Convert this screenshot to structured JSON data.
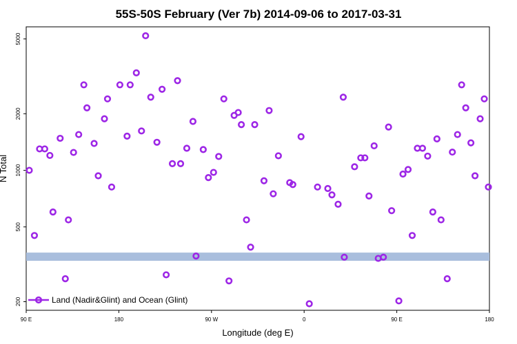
{
  "chart_data": {
    "type": "scatter",
    "title": "55S-50S February (Ver 7b)   2014-09-06 to 2017-03-31",
    "xlabel": "Longitude (deg E)",
    "ylabel": "N Total",
    "x_ticks": [
      {
        "value": 90,
        "label": "90 E"
      },
      {
        "value": 180,
        "label": "180"
      },
      {
        "value": 270,
        "label": "90 W"
      },
      {
        "value": 360,
        "label": "0"
      },
      {
        "value": 450,
        "label": "90 E"
      },
      {
        "value": 540,
        "label": "180"
      }
    ],
    "y_ticks": [
      {
        "value": 200,
        "label": "200"
      },
      {
        "value": 500,
        "label": "500"
      },
      {
        "value": 1000,
        "label": "1000"
      },
      {
        "value": 2000,
        "label": "2000"
      },
      {
        "value": 5000,
        "label": "5000"
      }
    ],
    "xlim": [
      90,
      540
    ],
    "ylim": [
      180,
      5800
    ],
    "y_scale": "log",
    "grid": false,
    "band": {
      "y_low": 330,
      "y_high": 365,
      "color": "#a9bedd"
    },
    "series": [
      {
        "name": "Land (Nadir&Glint) and Ocean (Glint)",
        "color": "#9d26e6",
        "points": [
          [
            93,
            1000
          ],
          [
            98,
            450
          ],
          [
            103,
            1300
          ],
          [
            108,
            1300
          ],
          [
            113,
            1200
          ],
          [
            116,
            600
          ],
          [
            123,
            1480
          ],
          [
            128,
            265
          ],
          [
            131,
            545
          ],
          [
            136,
            1245
          ],
          [
            141,
            1550
          ],
          [
            146,
            2850
          ],
          [
            149,
            2150
          ],
          [
            156,
            1390
          ],
          [
            160,
            935
          ],
          [
            166,
            1880
          ],
          [
            169,
            2400
          ],
          [
            173,
            815
          ],
          [
            181,
            2850
          ],
          [
            188,
            1520
          ],
          [
            191,
            2850
          ],
          [
            197,
            3300
          ],
          [
            202,
            1620
          ],
          [
            206,
            5200
          ],
          [
            211,
            2450
          ],
          [
            217,
            1410
          ],
          [
            222,
            2700
          ],
          [
            226,
            278
          ],
          [
            232,
            1085
          ],
          [
            237,
            3000
          ],
          [
            240,
            1085
          ],
          [
            246,
            1310
          ],
          [
            252,
            1820
          ],
          [
            255,
            350
          ],
          [
            262,
            1290
          ],
          [
            267,
            915
          ],
          [
            272,
            975
          ],
          [
            277,
            1185
          ],
          [
            282,
            2400
          ],
          [
            287,
            258
          ],
          [
            292,
            1960
          ],
          [
            296,
            2030
          ],
          [
            299,
            1750
          ],
          [
            304,
            545
          ],
          [
            308,
            390
          ],
          [
            312,
            1750
          ],
          [
            321,
            880
          ],
          [
            326,
            2080
          ],
          [
            330,
            750
          ],
          [
            335,
            1195
          ],
          [
            346,
            860
          ],
          [
            349,
            840
          ],
          [
            357,
            1510
          ],
          [
            365,
            195
          ],
          [
            373,
            815
          ],
          [
            383,
            800
          ],
          [
            387,
            740
          ],
          [
            393,
            660
          ],
          [
            398,
            2450
          ],
          [
            399,
            345
          ],
          [
            409,
            1045
          ],
          [
            415,
            1165
          ],
          [
            419,
            1165
          ],
          [
            423,
            730
          ],
          [
            428,
            1350
          ],
          [
            432,
            340
          ],
          [
            437,
            345
          ],
          [
            442,
            1700
          ],
          [
            445,
            610
          ],
          [
            452,
            202
          ],
          [
            456,
            955
          ],
          [
            461,
            1010
          ],
          [
            465,
            450
          ],
          [
            470,
            1310
          ],
          [
            475,
            1310
          ],
          [
            480,
            1190
          ],
          [
            485,
            600
          ],
          [
            489,
            1470
          ],
          [
            493,
            545
          ],
          [
            499,
            265
          ],
          [
            504,
            1250
          ],
          [
            509,
            1550
          ],
          [
            513,
            2850
          ],
          [
            517,
            2150
          ],
          [
            522,
            1400
          ],
          [
            526,
            935
          ],
          [
            531,
            1880
          ],
          [
            535,
            2400
          ],
          [
            539,
            815
          ]
        ]
      }
    ],
    "legend": {
      "position": "bottom-left",
      "label": "Land (Nadir&Glint) and Ocean (Glint)"
    }
  }
}
